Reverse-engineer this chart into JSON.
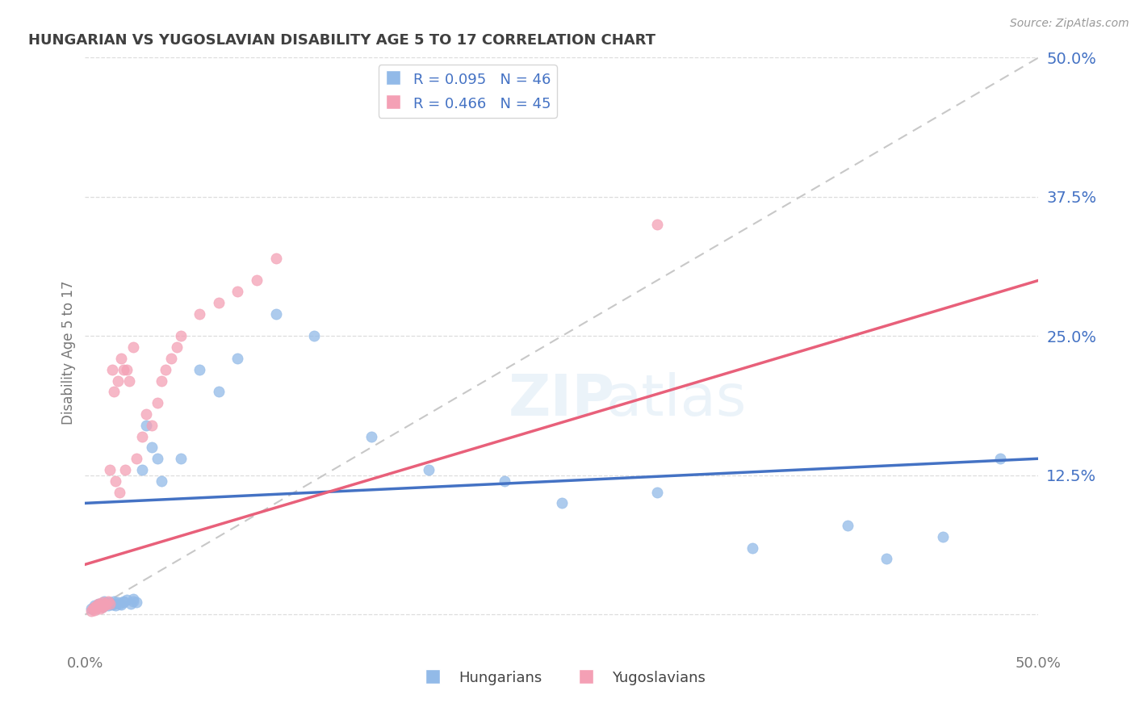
{
  "title": "HUNGARIAN VS YUGOSLAVIAN DISABILITY AGE 5 TO 17 CORRELATION CHART",
  "source": "Source: ZipAtlas.com",
  "ylabel": "Disability Age 5 to 17",
  "xmin": 0.0,
  "xmax": 0.5,
  "ymin": -0.03,
  "ymax": 0.5,
  "ytick_values": [
    0.0,
    0.125,
    0.25,
    0.375,
    0.5
  ],
  "right_ytick_labels": [
    "12.5%",
    "25.0%",
    "37.5%",
    "50.0%"
  ],
  "right_ytick_values": [
    0.125,
    0.25,
    0.375,
    0.5
  ],
  "hungarian_R": 0.095,
  "hungarian_N": 46,
  "yugoslavian_R": 0.466,
  "yugoslavian_N": 45,
  "hungarian_color": "#92BAE8",
  "yugoslavian_color": "#F4A0B5",
  "hungarian_line_color": "#4472C4",
  "yugoslavian_line_color": "#E8607A",
  "diagonal_color": "#C8C8C8",
  "background_color": "#FFFFFF",
  "grid_color": "#DDDDDD",
  "axis_label_color": "#4472C4",
  "title_color": "#404040",
  "hungarian_scatter_x": [
    0.003,
    0.005,
    0.006,
    0.007,
    0.008,
    0.009,
    0.01,
    0.01,
    0.011,
    0.012,
    0.013,
    0.014,
    0.015,
    0.015,
    0.016,
    0.017,
    0.018,
    0.019,
    0.02,
    0.02,
    0.022,
    0.024,
    0.025,
    0.025,
    0.027,
    0.03,
    0.032,
    0.035,
    0.038,
    0.04,
    0.05,
    0.06,
    0.07,
    0.08,
    0.1,
    0.12,
    0.15,
    0.18,
    0.22,
    0.25,
    0.3,
    0.35,
    0.4,
    0.42,
    0.45,
    0.48
  ],
  "hungarian_scatter_y": [
    0.005,
    0.008,
    0.006,
    0.01,
    0.008,
    0.007,
    0.009,
    0.012,
    0.01,
    0.008,
    0.011,
    0.009,
    0.01,
    0.012,
    0.008,
    0.011,
    0.01,
    0.009,
    0.012,
    0.011,
    0.013,
    0.01,
    0.012,
    0.014,
    0.011,
    0.13,
    0.17,
    0.15,
    0.14,
    0.12,
    0.14,
    0.22,
    0.2,
    0.23,
    0.27,
    0.25,
    0.16,
    0.13,
    0.12,
    0.1,
    0.11,
    0.06,
    0.08,
    0.05,
    0.07,
    0.14
  ],
  "yugoslavian_scatter_x": [
    0.003,
    0.004,
    0.005,
    0.005,
    0.006,
    0.006,
    0.007,
    0.007,
    0.008,
    0.008,
    0.009,
    0.009,
    0.01,
    0.01,
    0.011,
    0.012,
    0.013,
    0.013,
    0.014,
    0.015,
    0.016,
    0.017,
    0.018,
    0.019,
    0.02,
    0.021,
    0.022,
    0.023,
    0.025,
    0.027,
    0.03,
    0.032,
    0.035,
    0.038,
    0.04,
    0.042,
    0.045,
    0.048,
    0.05,
    0.06,
    0.07,
    0.08,
    0.09,
    0.1,
    0.3
  ],
  "yugoslavian_scatter_y": [
    0.003,
    0.005,
    0.004,
    0.007,
    0.006,
    0.008,
    0.007,
    0.01,
    0.005,
    0.009,
    0.007,
    0.011,
    0.008,
    0.01,
    0.009,
    0.012,
    0.01,
    0.13,
    0.22,
    0.2,
    0.12,
    0.21,
    0.11,
    0.23,
    0.22,
    0.13,
    0.22,
    0.21,
    0.24,
    0.14,
    0.16,
    0.18,
    0.17,
    0.19,
    0.21,
    0.22,
    0.23,
    0.24,
    0.25,
    0.27,
    0.28,
    0.29,
    0.3,
    0.32,
    0.35
  ]
}
